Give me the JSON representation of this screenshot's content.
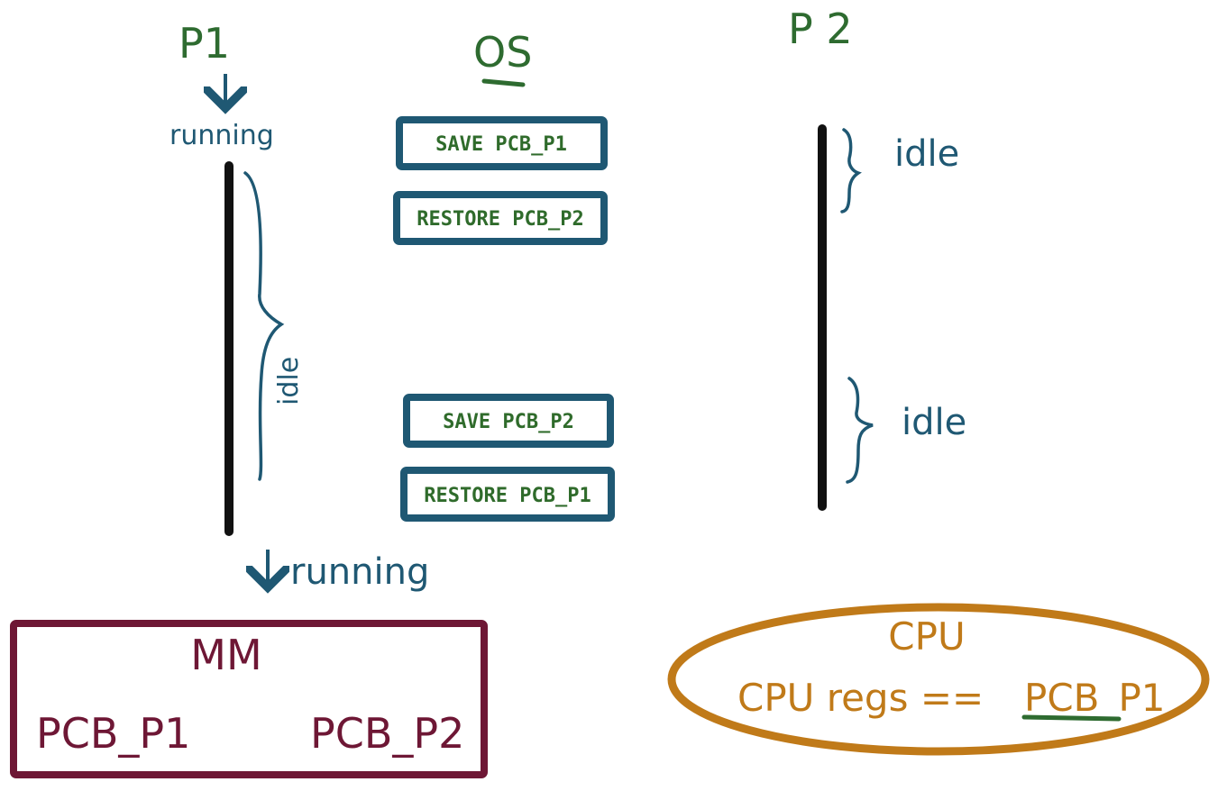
{
  "processes": {
    "p1": {
      "title": "P1",
      "start_state": "running",
      "middle_state": "idle",
      "end_state": "running"
    },
    "os": {
      "title": "OS",
      "steps": [
        "SAVE PCB_P1",
        "RESTORE PCB_P2",
        "SAVE PCB_P2",
        "RESTORE PCB_P1"
      ]
    },
    "p2": {
      "title": "P 2",
      "idle_top": "idle",
      "idle_bottom": "idle"
    }
  },
  "memory": {
    "title": "MM",
    "left": "PCB_P1",
    "right": "PCB_P2"
  },
  "cpu": {
    "title": "CPU",
    "expression_prefix": "CPU regs ==",
    "expression_target": "PCB_P1"
  },
  "colors": {
    "green": "#2e6b30",
    "blue": "#1f5873",
    "maroon": "#6e1735",
    "orange": "#c07a19",
    "black": "#111111"
  }
}
